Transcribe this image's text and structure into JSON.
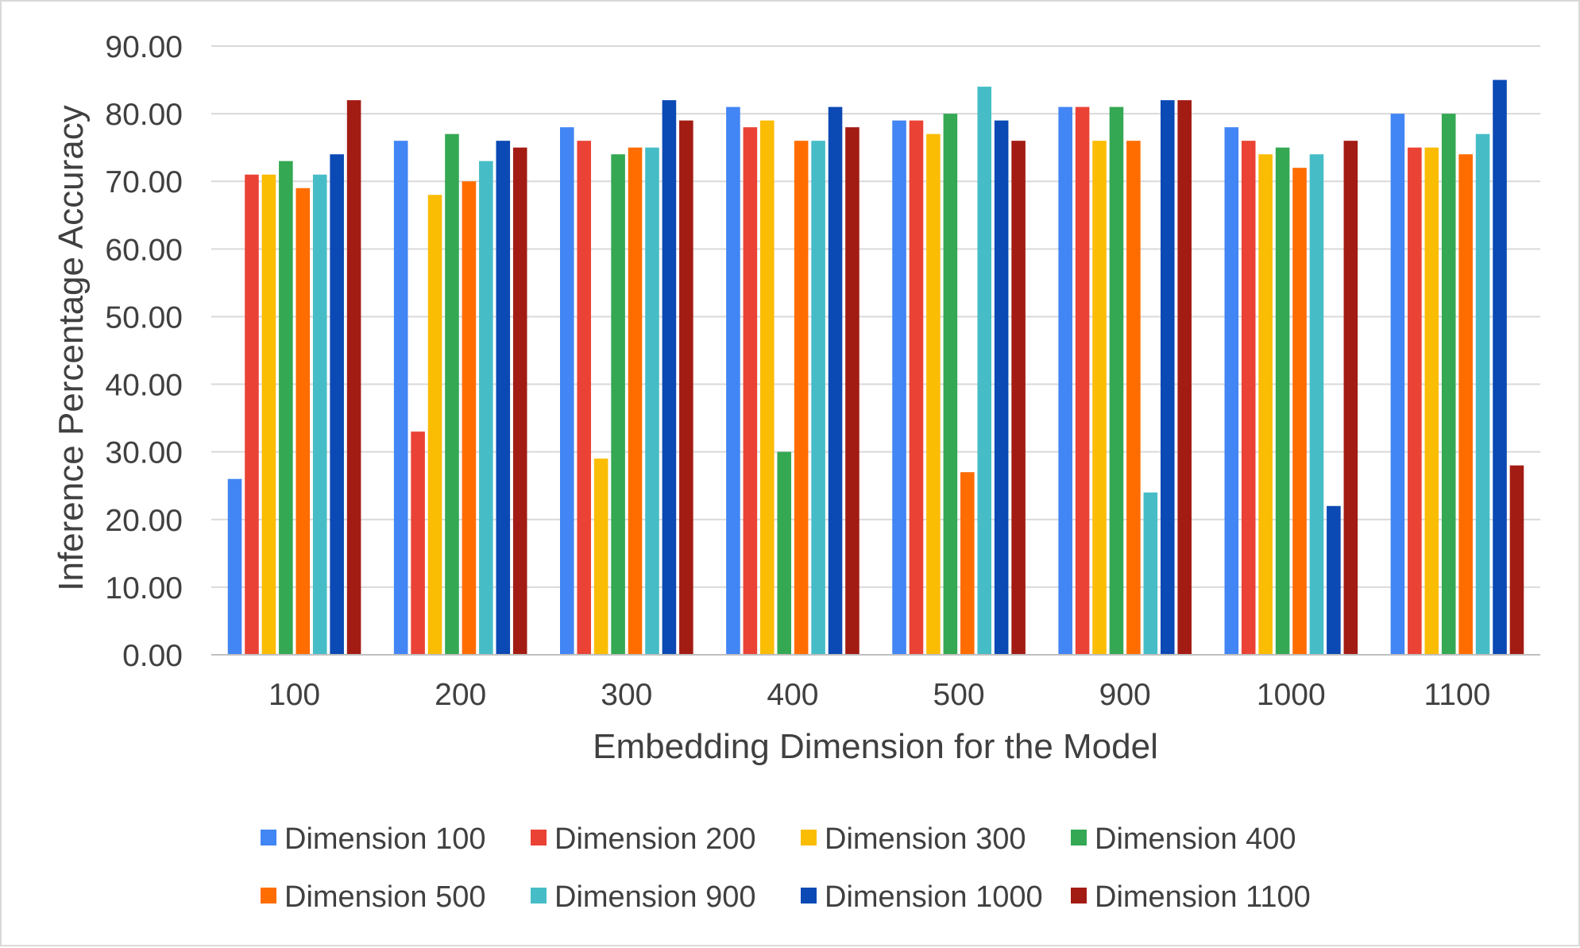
{
  "chart_data": {
    "type": "bar",
    "title": "",
    "xlabel": "Embedding Dimension for the Model",
    "ylabel": "Inference Percentage Accuracy",
    "ylim": [
      0,
      90
    ],
    "ytick_values": [
      0,
      10,
      20,
      30,
      40,
      50,
      60,
      70,
      80,
      90
    ],
    "ytick_labels": [
      "0.00",
      "10.00",
      "20.00",
      "30.00",
      "40.00",
      "50.00",
      "60.00",
      "70.00",
      "80.00",
      "90.00"
    ],
    "grid": true,
    "legend_position": "bottom",
    "categories": [
      "100",
      "200",
      "300",
      "400",
      "500",
      "900",
      "1000",
      "1100"
    ],
    "series": [
      {
        "name": "Dimension 100",
        "color": "#4285f4",
        "values": [
          26,
          76,
          78,
          81,
          79,
          81,
          78,
          80
        ]
      },
      {
        "name": "Dimension 200",
        "color": "#ea4335",
        "values": [
          71,
          33,
          76,
          78,
          79,
          81,
          76,
          75
        ]
      },
      {
        "name": "Dimension 300",
        "color": "#fbbc04",
        "values": [
          71,
          68,
          29,
          79,
          77,
          76,
          74,
          75
        ]
      },
      {
        "name": "Dimension 400",
        "color": "#34a853",
        "values": [
          73,
          77,
          74,
          30,
          80,
          81,
          75,
          80
        ]
      },
      {
        "name": "Dimension 500",
        "color": "#ff6d01",
        "values": [
          69,
          70,
          75,
          76,
          27,
          76,
          72,
          74
        ]
      },
      {
        "name": "Dimension 900",
        "color": "#46bdc6",
        "values": [
          71,
          73,
          75,
          76,
          84,
          24,
          74,
          77
        ]
      },
      {
        "name": "Dimension 1000",
        "color": "#0b49b4",
        "values": [
          74,
          76,
          82,
          81,
          79,
          82,
          22,
          85
        ]
      },
      {
        "name": "Dimension 1100",
        "color": "#a31c13",
        "values": [
          82,
          75,
          79,
          78,
          76,
          82,
          76,
          28
        ]
      }
    ]
  }
}
